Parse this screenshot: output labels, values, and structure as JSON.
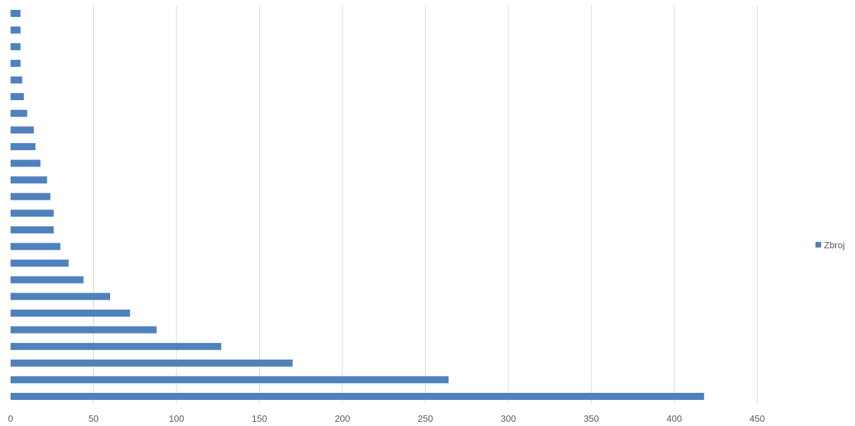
{
  "chart_data": {
    "type": "bar",
    "orientation": "horizontal",
    "series": [
      {
        "name": "Zbroj",
        "color": "#4f81bd",
        "values": [
          418,
          264,
          170,
          127,
          88,
          72,
          60,
          44,
          35,
          30,
          26,
          26,
          24,
          22,
          18,
          15,
          14,
          10,
          8,
          7,
          6,
          6,
          6,
          6
        ]
      }
    ],
    "xlim": [
      0,
      450
    ],
    "xticks": [
      "0",
      "50",
      "100",
      "150",
      "200",
      "250",
      "300",
      "350",
      "400",
      "450"
    ],
    "grid": true,
    "legend": "right",
    "gridline_color": "#d9d9d9"
  }
}
